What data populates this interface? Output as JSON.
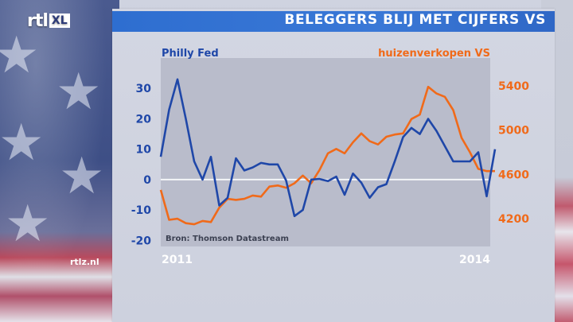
{
  "header": {
    "logo": "rtl",
    "logo_badge": "XL",
    "title": "BELEGGERS BLIJ MET CIJFERS VS"
  },
  "footer": {
    "site": "rtlz.nl"
  },
  "colors": {
    "philly": "#1f47a8",
    "housing": "#f06a1a",
    "title_bar": "#3372d2",
    "panel": "#d0d4e0",
    "plot_bg": "#b9bccb"
  },
  "chart_data": {
    "type": "line",
    "source": "Bron: Thomson Datastream",
    "x_labels": {
      "start": "2011",
      "end": "2014"
    },
    "left_axis": {
      "label": "Philly Fed",
      "ticks": [
        30,
        20,
        10,
        0,
        -10,
        -20
      ],
      "ylim": [
        -22,
        40
      ]
    },
    "right_axis": {
      "label": "huizenverkopen VS",
      "ticks": [
        5400,
        5000,
        4600,
        4200
      ],
      "ylim": [
        3950,
        5650
      ]
    },
    "zero_line": 0,
    "series": [
      {
        "name": "Philly Fed",
        "axis": "left",
        "values": [
          7.5,
          23,
          33,
          20,
          6,
          0,
          7.5,
          -8.5,
          -6,
          7,
          3,
          4,
          5.5,
          5,
          5,
          -0.3,
          -12,
          -10,
          0,
          0.2,
          -0.5,
          1,
          -5,
          2,
          -1,
          -6,
          -2.5,
          -1.5,
          6,
          14,
          17,
          15,
          20,
          16,
          11,
          6,
          6,
          6,
          9,
          -5.5,
          10
        ]
      },
      {
        "name": "huizenverkopen VS",
        "axis": "right",
        "values": [
          4460,
          4190,
          4200,
          4160,
          4150,
          4180,
          4170,
          4300,
          4380,
          4370,
          4380,
          4410,
          4400,
          4490,
          4500,
          4480,
          4520,
          4590,
          4520,
          4640,
          4790,
          4830,
          4790,
          4890,
          4970,
          4900,
          4870,
          4940,
          4960,
          4970,
          5100,
          5140,
          5390,
          5330,
          5300,
          5180,
          4930,
          4800,
          4650,
          4630,
          4630
        ]
      }
    ]
  }
}
